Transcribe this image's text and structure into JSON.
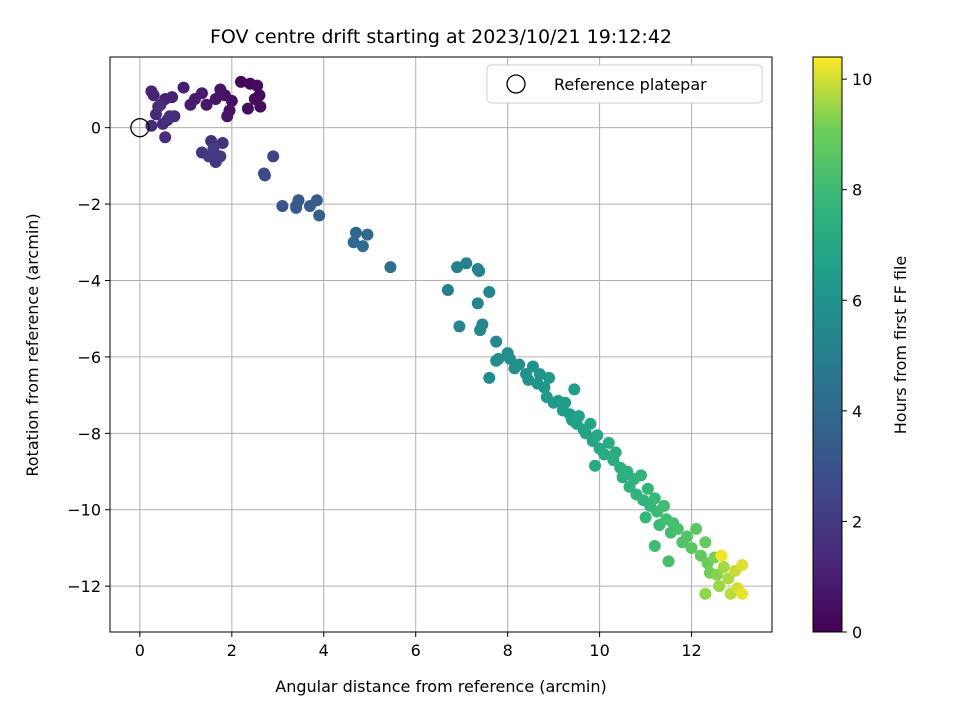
{
  "chart_data": {
    "type": "scatter",
    "title": "FOV centre drift starting at 2023/10/21 19:12:42",
    "xlabel": "Angular distance from reference (arcmin)",
    "ylabel": "Rotation from reference (arcmin)",
    "xlim": [
      -0.65,
      13.75
    ],
    "ylim": [
      -13.2,
      1.85
    ],
    "x_ticks": [
      0,
      2,
      4,
      6,
      8,
      10,
      12
    ],
    "y_ticks": [
      0,
      -2,
      -4,
      -6,
      -8,
      -10,
      -12
    ],
    "grid": true,
    "legend": {
      "position": "top-right",
      "entries": [
        {
          "label": "Reference platepar",
          "marker": "open-circle"
        }
      ]
    },
    "reference_point": {
      "x": 0,
      "y": 0
    },
    "colorbar": {
      "label": "Hours from first FF file",
      "range": [
        0,
        10.4
      ],
      "ticks": [
        0,
        2,
        4,
        6,
        8,
        10
      ],
      "colormap": "viridis"
    },
    "points": [
      [
        2.2,
        1.2,
        0.1
      ],
      [
        2.4,
        1.15,
        0.2
      ],
      [
        2.55,
        1.1,
        0.3
      ],
      [
        2.6,
        0.85,
        0.25
      ],
      [
        2.5,
        0.75,
        0.35
      ],
      [
        2.62,
        0.55,
        0.4
      ],
      [
        2.35,
        0.5,
        0.45
      ],
      [
        2.0,
        0.7,
        0.5
      ],
      [
        1.95,
        0.45,
        0.55
      ],
      [
        1.85,
        0.85,
        0.6
      ],
      [
        1.75,
        1.0,
        0.65
      ],
      [
        1.65,
        0.75,
        0.7
      ],
      [
        1.9,
        0.3,
        0.75
      ],
      [
        1.45,
        0.6,
        0.8
      ],
      [
        1.35,
        0.9,
        0.85
      ],
      [
        1.2,
        0.75,
        0.9
      ],
      [
        1.1,
        0.6,
        0.95
      ],
      [
        0.95,
        1.05,
        1.0
      ],
      [
        0.7,
        0.8,
        1.05
      ],
      [
        0.55,
        0.75,
        1.1
      ],
      [
        0.3,
        0.85,
        1.15
      ],
      [
        0.25,
        0.95,
        1.2
      ],
      [
        0.45,
        0.6,
        1.25
      ],
      [
        0.35,
        0.35,
        1.3
      ],
      [
        0.6,
        0.2,
        1.35
      ],
      [
        0.75,
        0.3,
        1.4
      ],
      [
        0.5,
        0.1,
        1.45
      ],
      [
        0.25,
        0.05,
        1.5
      ],
      [
        0.55,
        -0.25,
        1.55
      ],
      [
        0.4,
        0.55,
        1.6
      ],
      [
        0.65,
        0.3,
        1.6
      ],
      [
        1.55,
        -0.35,
        1.7
      ],
      [
        1.8,
        -0.4,
        1.75
      ],
      [
        1.35,
        -0.65,
        1.8
      ],
      [
        1.5,
        -0.75,
        1.85
      ],
      [
        1.65,
        -0.9,
        1.9
      ],
      [
        1.75,
        -0.75,
        1.95
      ],
      [
        1.6,
        -0.55,
        2.0
      ],
      [
        2.9,
        -0.75,
        2.4
      ],
      [
        2.7,
        -1.2,
        2.6
      ],
      [
        2.72,
        -1.25,
        2.7
      ],
      [
        3.1,
        -2.05,
        3.0
      ],
      [
        3.4,
        -2.05,
        3.2
      ],
      [
        3.45,
        -1.9,
        3.25
      ],
      [
        3.4,
        -2.1,
        3.3
      ],
      [
        3.7,
        -2.05,
        3.4
      ],
      [
        3.85,
        -1.9,
        3.45
      ],
      [
        3.9,
        -2.3,
        3.55
      ],
      [
        4.7,
        -2.75,
        3.9
      ],
      [
        4.65,
        -3.0,
        3.95
      ],
      [
        4.85,
        -3.1,
        4.0
      ],
      [
        4.95,
        -2.8,
        4.05
      ],
      [
        5.45,
        -3.65,
        4.3
      ],
      [
        6.7,
        -4.25,
        5.0
      ],
      [
        6.9,
        -3.65,
        5.1
      ],
      [
        7.1,
        -3.55,
        5.15
      ],
      [
        7.35,
        -3.7,
        5.2
      ],
      [
        7.38,
        -3.75,
        5.25
      ],
      [
        7.35,
        -4.6,
        5.3
      ],
      [
        7.6,
        -4.3,
        5.35
      ],
      [
        6.95,
        -5.2,
        5.4
      ],
      [
        7.45,
        -5.15,
        5.45
      ],
      [
        7.4,
        -5.3,
        5.5
      ],
      [
        7.75,
        -5.6,
        5.55
      ],
      [
        7.8,
        -6.05,
        5.6
      ],
      [
        7.75,
        -6.1,
        5.65
      ],
      [
        7.6,
        -6.55,
        5.6
      ],
      [
        8.0,
        -5.9,
        5.7
      ],
      [
        8.05,
        -6.05,
        5.75
      ],
      [
        8.15,
        -6.3,
        5.8
      ],
      [
        8.25,
        -6.2,
        5.85
      ],
      [
        8.4,
        -6.45,
        5.9
      ],
      [
        8.45,
        -6.6,
        5.95
      ],
      [
        8.55,
        -6.25,
        6.0
      ],
      [
        8.65,
        -6.7,
        6.05
      ],
      [
        8.7,
        -6.45,
        6.1
      ],
      [
        8.8,
        -6.8,
        6.15
      ],
      [
        8.9,
        -6.55,
        6.2
      ],
      [
        8.85,
        -7.05,
        6.25
      ],
      [
        9.0,
        -7.2,
        6.3
      ],
      [
        9.1,
        -7.15,
        6.35
      ],
      [
        9.2,
        -7.4,
        6.4
      ],
      [
        9.25,
        -7.2,
        6.45
      ],
      [
        9.35,
        -7.5,
        6.5
      ],
      [
        9.45,
        -6.85,
        6.55
      ],
      [
        9.4,
        -7.65,
        6.6
      ],
      [
        9.5,
        -7.75,
        6.65
      ],
      [
        9.55,
        -7.55,
        6.7
      ],
      [
        9.65,
        -7.9,
        6.75
      ],
      [
        9.7,
        -8.0,
        6.8
      ],
      [
        9.8,
        -7.75,
        6.85
      ],
      [
        9.85,
        -8.2,
        6.9
      ],
      [
        9.95,
        -8.05,
        6.95
      ],
      [
        10.0,
        -8.4,
        7.0
      ],
      [
        9.9,
        -8.85,
        7.05
      ],
      [
        10.1,
        -8.55,
        7.1
      ],
      [
        10.2,
        -8.25,
        7.15
      ],
      [
        10.3,
        -8.7,
        7.2
      ],
      [
        10.35,
        -8.5,
        7.25
      ],
      [
        10.45,
        -8.9,
        7.3
      ],
      [
        10.5,
        -9.15,
        7.35
      ],
      [
        10.6,
        -9.0,
        7.4
      ],
      [
        10.65,
        -9.4,
        7.45
      ],
      [
        10.75,
        -9.2,
        7.5
      ],
      [
        10.8,
        -9.6,
        7.55
      ],
      [
        10.9,
        -9.1,
        7.6
      ],
      [
        10.95,
        -9.75,
        7.65
      ],
      [
        11.05,
        -9.45,
        7.7
      ],
      [
        11.1,
        -9.9,
        7.75
      ],
      [
        11.0,
        -10.2,
        7.8
      ],
      [
        11.2,
        -9.7,
        7.85
      ],
      [
        11.25,
        -10.05,
        7.9
      ],
      [
        11.3,
        -10.4,
        7.95
      ],
      [
        11.2,
        -10.95,
        8.0
      ],
      [
        11.4,
        -9.9,
        8.05
      ],
      [
        11.45,
        -10.25,
        8.1
      ],
      [
        11.55,
        -10.6,
        8.15
      ],
      [
        11.6,
        -10.35,
        8.2
      ],
      [
        11.5,
        -11.35,
        8.25
      ],
      [
        11.7,
        -10.5,
        8.3
      ],
      [
        11.8,
        -10.85,
        8.4
      ],
      [
        11.9,
        -10.7,
        8.5
      ],
      [
        12.0,
        -11.0,
        8.6
      ],
      [
        12.1,
        -10.5,
        8.7
      ],
      [
        12.2,
        -11.2,
        8.8
      ],
      [
        12.3,
        -10.85,
        8.9
      ],
      [
        12.35,
        -11.4,
        9.0
      ],
      [
        12.4,
        -11.65,
        9.1
      ],
      [
        12.5,
        -11.25,
        9.2
      ],
      [
        12.55,
        -11.7,
        9.3
      ],
      [
        12.3,
        -12.2,
        9.4
      ],
      [
        12.6,
        -12.0,
        9.5
      ],
      [
        12.7,
        -11.5,
        9.6
      ],
      [
        12.8,
        -11.8,
        9.7
      ],
      [
        12.85,
        -12.2,
        9.8
      ],
      [
        12.95,
        -11.6,
        9.9
      ],
      [
        13.0,
        -12.05,
        10.0
      ],
      [
        13.1,
        -11.45,
        10.1
      ],
      [
        13.1,
        -12.2,
        10.2
      ],
      [
        12.65,
        -11.2,
        10.3
      ]
    ]
  }
}
